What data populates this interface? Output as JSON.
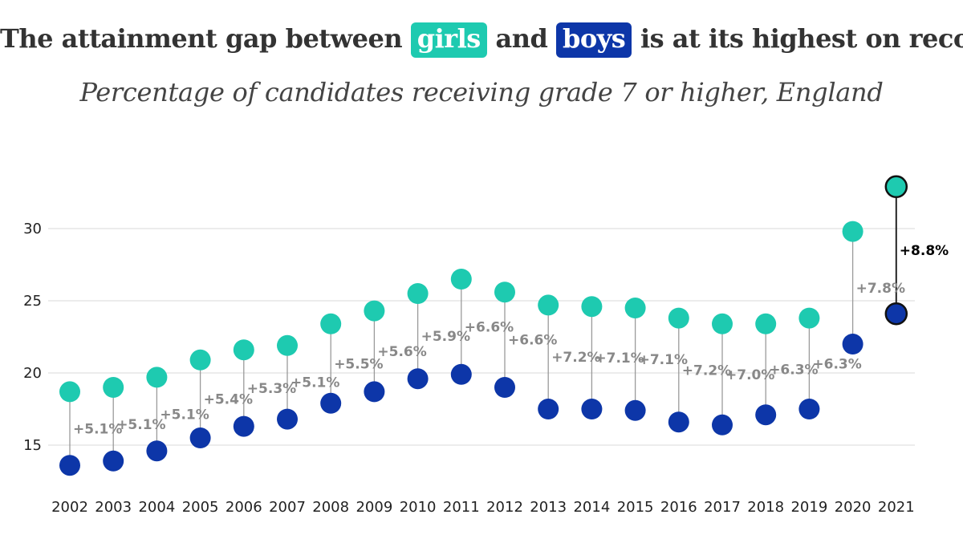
{
  "title": {
    "before": "The attainment gap between",
    "girls": "girls",
    "middle": "and",
    "boys": "boys",
    "after": "is at its highest on record"
  },
  "subtitle": "Percentage of candidates receiving grade 7 or higher, England",
  "colors": {
    "girls": "#1ECAB0",
    "boys": "#0D36A8",
    "connector": "#9a9a9a",
    "grid": "#d8d8d8",
    "highlight_stroke": "#111111"
  },
  "chart_data": {
    "type": "dumbbell",
    "x": [
      "2002",
      "2003",
      "2004",
      "2005",
      "2006",
      "2007",
      "2008",
      "2009",
      "2010",
      "2011",
      "2012",
      "2013",
      "2014",
      "2015",
      "2016",
      "2017",
      "2018",
      "2019",
      "2020",
      "2021"
    ],
    "series": [
      {
        "name": "girls",
        "values": [
          18.7,
          19.0,
          19.7,
          20.9,
          21.6,
          21.9,
          23.4,
          24.3,
          25.5,
          26.5,
          25.6,
          24.7,
          24.6,
          24.5,
          23.8,
          23.4,
          23.4,
          23.8,
          29.8,
          32.9
        ]
      },
      {
        "name": "boys",
        "values": [
          13.6,
          13.9,
          14.6,
          15.5,
          16.3,
          16.8,
          17.9,
          18.7,
          19.6,
          19.9,
          19.0,
          17.5,
          17.5,
          17.4,
          16.6,
          16.4,
          17.1,
          17.5,
          22.0,
          24.1
        ]
      }
    ],
    "gap_labels": [
      "+5.1%",
      "+5.1%",
      "+5.1%",
      "+5.4%",
      "+5.3%",
      "+5.1%",
      "+5.5%",
      "+5.6%",
      "+5.9%",
      "+6.6%",
      "+6.6%",
      "+7.2%",
      "+7.1%",
      "+7.1%",
      "+7.2%",
      "+7.0%",
      "+6.3%",
      "+6.3%",
      "+7.8%",
      "+8.8%"
    ],
    "highlight_index": 19,
    "y_ticks": [
      15,
      20,
      25,
      30
    ],
    "ylim": [
      12.5,
      34
    ],
    "grid": true,
    "legend": "in title",
    "xlabel": "",
    "ylabel": ""
  }
}
